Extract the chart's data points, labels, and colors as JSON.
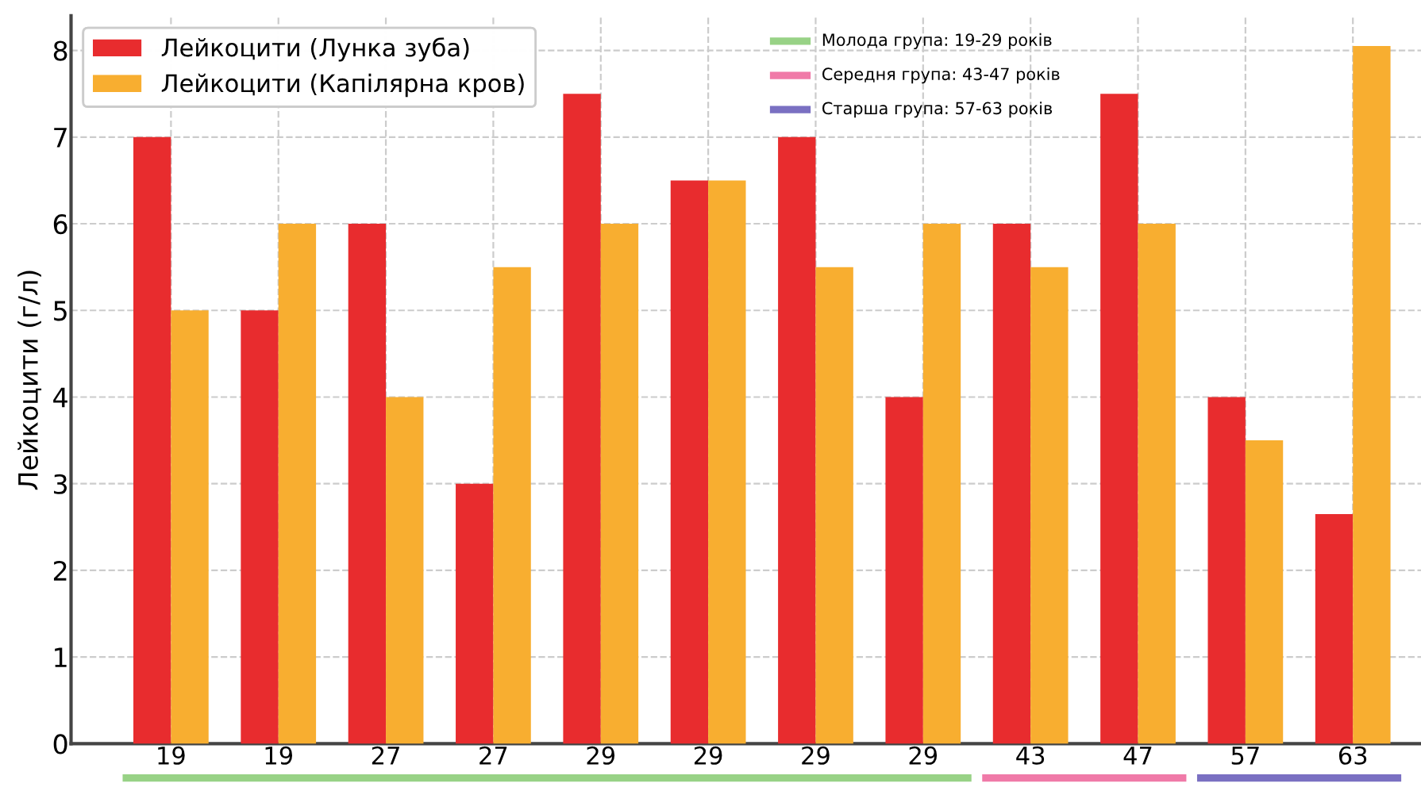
{
  "chart_data": {
    "type": "bar",
    "ylabel": "Лейкоцити (г/л)",
    "categories": [
      "19",
      "19",
      "27",
      "27",
      "29",
      "29",
      "29",
      "29",
      "43",
      "47",
      "57",
      "63"
    ],
    "series": [
      {
        "name": "Лейкоцити (Лунка зуба)",
        "color": "#e82c2e",
        "values": [
          7,
          5,
          6,
          3,
          7.5,
          6.5,
          7,
          4,
          6,
          7.5,
          4,
          2.65
        ]
      },
      {
        "name": "Лейкоцити (Капілярна кров)",
        "color": "#f8ae30",
        "values": [
          5,
          6,
          4,
          5.5,
          6,
          6.5,
          5.5,
          6,
          5.5,
          6,
          3.5,
          8.05
        ]
      }
    ],
    "annotations": [
      "Молода група: 19-29 років",
      "Середня група: 43-47 років",
      "Старша група: 57-63 років"
    ],
    "ylim": [
      0,
      8.4
    ],
    "yticks": [
      0,
      1,
      2,
      3,
      4,
      5,
      6,
      7,
      8
    ],
    "grid": true,
    "legend": "top left"
  }
}
